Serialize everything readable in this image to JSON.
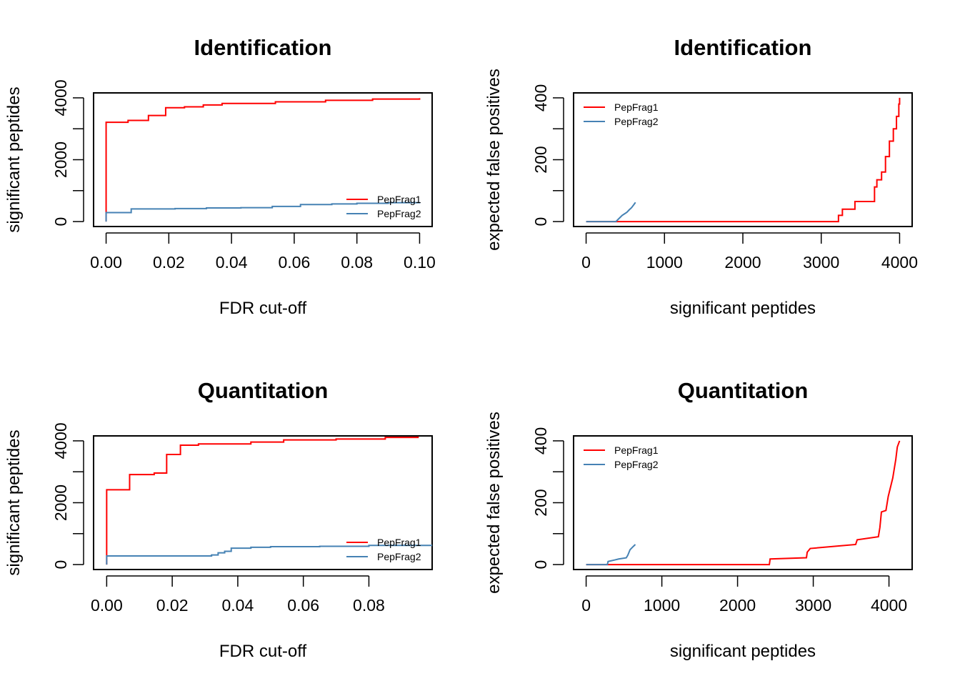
{
  "chart_data": [
    {
      "type": "line",
      "title": "Identification",
      "xlabel": "FDR cut-off",
      "ylabel": "significant peptides",
      "xlim": [
        -0.004,
        0.104
      ],
      "ylim": [
        -160,
        4160
      ],
      "xticks": [
        0.0,
        0.02,
        0.04,
        0.06,
        0.08,
        0.1
      ],
      "xtick_labels": [
        "0.00",
        "0.02",
        "0.04",
        "0.06",
        "0.08",
        "0.10"
      ],
      "yticks": [
        0,
        1000,
        2000,
        3000,
        4000
      ],
      "ytick_labels": [
        "0",
        "",
        "2000",
        "",
        "4000"
      ],
      "legend_position": "bottom-right",
      "grid": false,
      "series": [
        {
          "name": "PepFrag1",
          "color": "#ff0000",
          "step": true,
          "x": [
            0,
            0,
            0.007,
            0.0135,
            0.019,
            0.025,
            0.031,
            0.037,
            0.054,
            0.07,
            0.085,
            0.1
          ],
          "y": [
            0,
            3210,
            3270,
            3430,
            3680,
            3710,
            3770,
            3820,
            3870,
            3920,
            3960,
            3990
          ]
        },
        {
          "name": "PepFrag2",
          "color": "#4682b4",
          "step": true,
          "x": [
            0,
            0,
            0.008,
            0.022,
            0.032,
            0.043,
            0.053,
            0.062,
            0.072,
            0.08,
            0.09,
            0.1
          ],
          "y": [
            0,
            290,
            410,
            420,
            440,
            450,
            490,
            550,
            570,
            590,
            610,
            630
          ]
        }
      ]
    },
    {
      "type": "line",
      "title": "Identification",
      "xlabel": "significant peptides",
      "ylabel": "expected false positives",
      "xlim": [
        -160,
        4160
      ],
      "ylim": [
        -16,
        416
      ],
      "xticks": [
        0,
        1000,
        2000,
        3000,
        4000
      ],
      "xtick_labels": [
        "0",
        "1000",
        "2000",
        "3000",
        "4000"
      ],
      "yticks": [
        0,
        100,
        200,
        300,
        400
      ],
      "ytick_labels": [
        "0",
        "",
        "200",
        "",
        "400"
      ],
      "legend_position": "top-left",
      "grid": false,
      "series": [
        {
          "name": "PepFrag1",
          "color": "#ff0000",
          "step": true,
          "x": [
            0,
            3210,
            3220,
            3270,
            3430,
            3680,
            3710,
            3770,
            3820,
            3870,
            3920,
            3960,
            3990,
            4000
          ],
          "y": [
            0,
            0,
            20,
            40,
            65,
            112,
            135,
            160,
            210,
            260,
            300,
            340,
            380,
            400
          ]
        },
        {
          "name": "PepFrag2",
          "color": "#4682b4",
          "step": false,
          "x": [
            0,
            380,
            420,
            460,
            490,
            520,
            550,
            580,
            610,
            630
          ],
          "y": [
            0,
            0,
            10,
            20,
            25,
            30,
            38,
            45,
            55,
            62
          ]
        }
      ]
    },
    {
      "type": "line",
      "title": "Quantitation",
      "xlabel": "FDR cut-off",
      "ylabel": "significant peptides",
      "xlim": [
        -0.004,
        0.0993
      ],
      "ylim": [
        -160,
        4160
      ],
      "xticks": [
        0.0,
        0.02,
        0.04,
        0.06,
        0.08
      ],
      "xtick_labels": [
        "0.00",
        "0.02",
        "0.04",
        "0.06",
        "0.08"
      ],
      "yticks": [
        0,
        1000,
        2000,
        3000,
        4000
      ],
      "ytick_labels": [
        "0",
        "",
        "2000",
        "",
        "4000"
      ],
      "legend_position": "bottom-right",
      "grid": false,
      "series": [
        {
          "name": "PepFrag1",
          "color": "#ff0000",
          "step": true,
          "x": [
            0,
            0,
            0.007,
            0.0145,
            0.0183,
            0.0225,
            0.028,
            0.044,
            0.054,
            0.07,
            0.085,
            0.095
          ],
          "y": [
            0,
            2420,
            2910,
            2960,
            3560,
            3860,
            3900,
            3960,
            4030,
            4060,
            4110,
            4140
          ]
        },
        {
          "name": "PepFrag2",
          "color": "#4682b4",
          "step": true,
          "x": [
            0,
            0,
            0.032,
            0.034,
            0.036,
            0.038,
            0.044,
            0.05,
            0.065,
            0.08,
            0.0993
          ],
          "y": [
            0,
            280,
            310,
            380,
            430,
            530,
            560,
            580,
            590,
            620,
            650
          ]
        }
      ]
    },
    {
      "type": "line",
      "title": "Quantitation",
      "xlabel": "significant peptides",
      "ylabel": "expected false positives",
      "xlim": [
        -166,
        4306
      ],
      "ylim": [
        -16,
        416
      ],
      "xticks": [
        0,
        1000,
        2000,
        3000,
        4000
      ],
      "xtick_labels": [
        "0",
        "1000",
        "2000",
        "3000",
        "4000"
      ],
      "yticks": [
        0,
        100,
        200,
        300,
        400
      ],
      "ytick_labels": [
        "0",
        "",
        "200",
        "",
        "400"
      ],
      "legend_position": "top-left",
      "grid": false,
      "series": [
        {
          "name": "PepFrag1",
          "color": "#ff0000",
          "step": false,
          "x": [
            0,
            2420,
            2430,
            2910,
            2920,
            2960,
            3560,
            3580,
            3860,
            3880,
            3900,
            3960,
            3990,
            4050,
            4090,
            4110,
            4140
          ],
          "y": [
            0,
            0,
            18,
            22,
            40,
            52,
            65,
            80,
            90,
            120,
            170,
            175,
            220,
            280,
            340,
            380,
            400
          ]
        },
        {
          "name": "PepFrag2",
          "color": "#4682b4",
          "step": false,
          "x": [
            0,
            280,
            290,
            380,
            430,
            530,
            550,
            580,
            620,
            650
          ],
          "y": [
            0,
            0,
            10,
            15,
            18,
            22,
            30,
            48,
            58,
            65
          ]
        }
      ]
    }
  ]
}
